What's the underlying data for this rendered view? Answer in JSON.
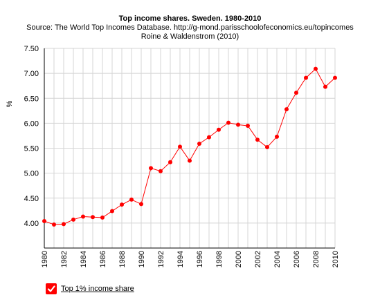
{
  "chart_data": {
    "type": "line",
    "title": "Top income shares. Sweden. 1980-2010",
    "subtitle_lines": [
      "Source: The World Top Incomes Database. http://g-mond.parisschoolofeconomics.eu/topincomes",
      "Roine & Waldenstrom (2010)"
    ],
    "xlabel": "",
    "ylabel": "%",
    "xlim": [
      1980,
      2010
    ],
    "ylim": [
      3.5,
      7.5
    ],
    "x_ticks": [
      "1980",
      "1982",
      "1984",
      "1986",
      "1988",
      "1990",
      "1992",
      "1994",
      "1996",
      "1998",
      "2000",
      "2002",
      "2004",
      "2006",
      "2008",
      "2010"
    ],
    "y_ticks": [
      "4.00",
      "4.50",
      "5.00",
      "5.50",
      "6.00",
      "6.50",
      "7.00",
      "7.50"
    ],
    "grid": true,
    "legend_position": "bottom-left",
    "x": [
      1980,
      1981,
      1982,
      1983,
      1984,
      1985,
      1986,
      1987,
      1988,
      1989,
      1990,
      1991,
      1992,
      1993,
      1994,
      1995,
      1996,
      1997,
      1998,
      1999,
      2000,
      2001,
      2002,
      2003,
      2004,
      2005,
      2006,
      2007,
      2008,
      2009,
      2010
    ],
    "series": [
      {
        "name": "Top 1% income share",
        "color": "#ff0000",
        "values": [
          4.04,
          3.97,
          3.98,
          4.07,
          4.13,
          4.12,
          4.11,
          4.24,
          4.37,
          4.47,
          4.38,
          5.1,
          5.04,
          5.22,
          5.53,
          5.25,
          5.59,
          5.72,
          5.87,
          6.01,
          5.97,
          5.95,
          5.67,
          5.52,
          5.73,
          6.28,
          6.61,
          6.91,
          7.09,
          6.73,
          6.91
        ]
      }
    ]
  },
  "legend": {
    "checkbox_icon": "checkmark-icon",
    "checkbox_color": "#ff0000"
  }
}
